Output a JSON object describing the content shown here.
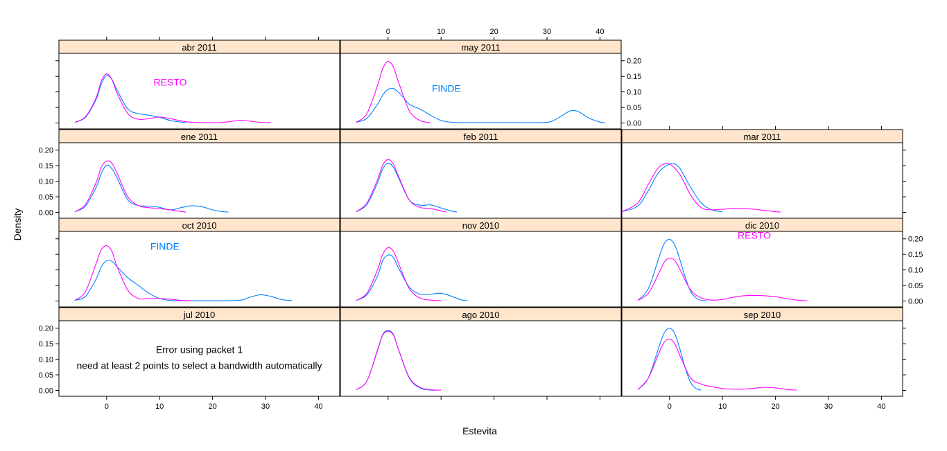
{
  "chart_data": {
    "type": "line",
    "chart_kind": "lattice density plot (densityplot), 3 columns x 4 rows",
    "xlabel": "Estevita",
    "ylabel": "Density",
    "xlim": [
      -9,
      44
    ],
    "ylim": [
      -0.01,
      0.215
    ],
    "x_ticks": [
      0,
      10,
      20,
      30,
      40
    ],
    "y_ticks": [
      0.0,
      0.05,
      0.1,
      0.15,
      0.2
    ],
    "y_tick_labels": [
      "0.00",
      "0.05",
      "0.10",
      "0.15",
      "0.20"
    ],
    "grid": false,
    "strip_color": "#ffe5cc",
    "series_colors": {
      "FINDE": "#0080ff",
      "RESTO": "#ff00ff"
    },
    "error_text": {
      "line1": "Error using packet 1",
      "line2": "need at least 2 points to select a bandwidth automatically"
    },
    "panels": [
      {
        "label": "abr 2011",
        "row": 0,
        "col": 0,
        "annotation": {
          "text": "RESTO",
          "series": "RESTO",
          "x": 12,
          "y": 0.12
        },
        "series": [
          {
            "name": "FINDE",
            "x": [
              -6,
              -4,
              -2,
              -1,
              0,
              1,
              2,
              4,
              6,
              8,
              10,
              12,
              14,
              15
            ],
            "y": [
              0.002,
              0.018,
              0.075,
              0.125,
              0.153,
              0.14,
              0.105,
              0.045,
              0.03,
              0.025,
              0.018,
              0.008,
              0.003,
              0.001
            ]
          },
          {
            "name": "RESTO",
            "x": [
              -6,
              -4,
              -2,
              -1,
              0,
              1,
              2,
              4,
              6,
              8,
              10,
              12,
              15,
              18,
              21,
              23,
              25,
              27,
              29,
              31
            ],
            "y": [
              0.002,
              0.02,
              0.08,
              0.135,
              0.158,
              0.14,
              0.095,
              0.03,
              0.012,
              0.014,
              0.019,
              0.014,
              0.004,
              0.001,
              0.001,
              0.004,
              0.008,
              0.006,
              0.002,
              0.001
            ]
          }
        ]
      },
      {
        "label": "may 2011",
        "row": 0,
        "col": 1,
        "annotation": {
          "text": "FINDE",
          "series": "FINDE",
          "x": 11,
          "y": 0.1
        },
        "series": [
          {
            "name": "FINDE",
            "x": [
              -6,
              -4,
              -2,
              -1,
              0,
              1,
              2,
              3,
              4,
              6,
              8,
              10,
              12,
              14,
              16,
              20,
              25,
              30,
              32,
              34,
              35,
              36,
              38,
              40,
              41
            ],
            "y": [
              0.002,
              0.015,
              0.06,
              0.09,
              0.108,
              0.111,
              0.098,
              0.08,
              0.06,
              0.045,
              0.025,
              0.008,
              0.002,
              0.001,
              0.001,
              0.001,
              0.001,
              0.002,
              0.015,
              0.036,
              0.04,
              0.036,
              0.015,
              0.003,
              0.001
            ]
          },
          {
            "name": "RESTO",
            "x": [
              -6,
              -4,
              -2,
              -1,
              0,
              1,
              2,
              4,
              6,
              8
            ],
            "y": [
              0.002,
              0.03,
              0.12,
              0.175,
              0.198,
              0.18,
              0.13,
              0.04,
              0.008,
              0.001
            ]
          }
        ]
      },
      {
        "label": "ene 2011",
        "row": 1,
        "col": 0,
        "series": [
          {
            "name": "FINDE",
            "x": [
              -6,
              -4,
              -2,
              -1,
              0,
              1,
              2,
              4,
              6,
              8,
              10,
              12,
              14,
              16,
              18,
              20,
              22,
              23
            ],
            "y": [
              0.002,
              0.02,
              0.08,
              0.125,
              0.152,
              0.14,
              0.11,
              0.04,
              0.022,
              0.02,
              0.016,
              0.008,
              0.015,
              0.021,
              0.018,
              0.008,
              0.002,
              0.001
            ]
          },
          {
            "name": "RESTO",
            "x": [
              -6,
              -4,
              -2,
              -1,
              0,
              1,
              2,
              4,
              6,
              8,
              10,
              12,
              14,
              15
            ],
            "y": [
              0.002,
              0.025,
              0.095,
              0.145,
              0.165,
              0.158,
              0.125,
              0.05,
              0.022,
              0.015,
              0.012,
              0.008,
              0.003,
              0.001
            ]
          }
        ]
      },
      {
        "label": "feb 2011",
        "row": 1,
        "col": 1,
        "series": [
          {
            "name": "FINDE",
            "x": [
              -6,
              -4,
              -2,
              -1,
              0,
              1,
              2,
              4,
              6,
              8,
              10,
              12,
              13
            ],
            "y": [
              0.002,
              0.025,
              0.095,
              0.14,
              0.158,
              0.145,
              0.11,
              0.04,
              0.023,
              0.024,
              0.014,
              0.004,
              0.001
            ]
          },
          {
            "name": "RESTO",
            "x": [
              -6,
              -4,
              -2,
              -1,
              0,
              1,
              2,
              4,
              6,
              8,
              10,
              11
            ],
            "y": [
              0.002,
              0.03,
              0.105,
              0.152,
              0.17,
              0.155,
              0.115,
              0.04,
              0.016,
              0.012,
              0.005,
              0.001
            ]
          }
        ]
      },
      {
        "label": "mar 2011",
        "row": 1,
        "col": 2,
        "series": [
          {
            "name": "FINDE",
            "x": [
              -9,
              -6,
              -4,
              -2,
              0,
              1,
              2,
              4,
              6,
              8,
              10
            ],
            "y": [
              0.002,
              0.02,
              0.07,
              0.13,
              0.155,
              0.155,
              0.14,
              0.08,
              0.03,
              0.008,
              0.001
            ]
          },
          {
            "name": "RESTO",
            "x": [
              -9,
              -6,
              -4,
              -2,
              0,
              2,
              4,
              6,
              8,
              10,
              12,
              14,
              16,
              18,
              20,
              21
            ],
            "y": [
              0.002,
              0.03,
              0.09,
              0.145,
              0.155,
              0.12,
              0.055,
              0.015,
              0.008,
              0.01,
              0.012,
              0.012,
              0.01,
              0.006,
              0.002,
              0.001
            ]
          }
        ]
      },
      {
        "label": "oct 2010",
        "row": 2,
        "col": 0,
        "annotation": {
          "text": "FINDE",
          "series": "FINDE",
          "x": 11,
          "y": 0.165
        },
        "series": [
          {
            "name": "FINDE",
            "x": [
              -6,
              -4,
              -2,
              -1,
              0,
              1,
              2,
              4,
              6,
              8,
              10,
              12,
              15,
              20,
              25,
              27,
              29,
              31,
              33,
              35
            ],
            "y": [
              0.002,
              0.015,
              0.07,
              0.11,
              0.13,
              0.128,
              0.11,
              0.075,
              0.05,
              0.025,
              0.008,
              0.002,
              0.001,
              0.001,
              0.002,
              0.012,
              0.02,
              0.015,
              0.005,
              0.001
            ]
          },
          {
            "name": "RESTO",
            "x": [
              -6,
              -4,
              -2,
              -1,
              0,
              1,
              2,
              4,
              6,
              8,
              10,
              12,
              14,
              16
            ],
            "y": [
              0.002,
              0.03,
              0.12,
              0.165,
              0.178,
              0.16,
              0.11,
              0.035,
              0.008,
              0.008,
              0.008,
              0.006,
              0.002,
              0.001
            ]
          }
        ]
      },
      {
        "label": "nov 2010",
        "row": 2,
        "col": 1,
        "series": [
          {
            "name": "FINDE",
            "x": [
              -6,
              -4,
              -2,
              -1,
              0,
              1,
              2,
              4,
              6,
              8,
              10,
              12,
              14,
              15
            ],
            "y": [
              0.002,
              0.02,
              0.08,
              0.13,
              0.148,
              0.14,
              0.105,
              0.045,
              0.022,
              0.022,
              0.025,
              0.015,
              0.003,
              0.001
            ]
          },
          {
            "name": "RESTO",
            "x": [
              -6,
              -4,
              -2,
              -1,
              0,
              1,
              2,
              4,
              6,
              8,
              10
            ],
            "y": [
              0.002,
              0.025,
              0.1,
              0.15,
              0.172,
              0.16,
              0.12,
              0.04,
              0.01,
              0.003,
              0.001
            ]
          }
        ]
      },
      {
        "label": "dic 2010",
        "row": 2,
        "col": 2,
        "annotation": {
          "text": "RESTO",
          "series": "RESTO",
          "x": 16,
          "y": 0.2
        },
        "series": [
          {
            "name": "FINDE",
            "x": [
              -6,
              -4,
              -2,
              -1,
              0,
              1,
              2,
              3,
              4,
              5,
              6,
              7
            ],
            "y": [
              0.002,
              0.04,
              0.14,
              0.185,
              0.198,
              0.18,
              0.13,
              0.075,
              0.03,
              0.01,
              0.002,
              0.001
            ]
          },
          {
            "name": "RESTO",
            "x": [
              -6,
              -4,
              -2,
              -1,
              0,
              1,
              2,
              4,
              6,
              8,
              10,
              12,
              14,
              16,
              18,
              20,
              22,
              24,
              26
            ],
            "y": [
              0.002,
              0.025,
              0.09,
              0.125,
              0.138,
              0.13,
              0.1,
              0.035,
              0.01,
              0.003,
              0.005,
              0.012,
              0.017,
              0.018,
              0.017,
              0.014,
              0.008,
              0.003,
              0.001
            ]
          }
        ]
      },
      {
        "label": "jul 2010",
        "row": 3,
        "col": 0,
        "error": true,
        "series": []
      },
      {
        "label": "ago 2010",
        "row": 3,
        "col": 1,
        "series": [
          {
            "name": "FINDE",
            "x": [
              -6,
              -4,
              -2,
              -1,
              0,
              1,
              2,
              4,
              6,
              8,
              9
            ],
            "y": [
              0.002,
              0.03,
              0.13,
              0.18,
              0.193,
              0.18,
              0.13,
              0.04,
              0.008,
              0.001,
              0.001
            ]
          },
          {
            "name": "RESTO",
            "x": [
              -6,
              -4,
              -2,
              -1,
              0,
              1,
              2,
              4,
              6,
              8,
              10
            ],
            "y": [
              0.002,
              0.03,
              0.128,
              0.178,
              0.19,
              0.178,
              0.13,
              0.042,
              0.01,
              0.002,
              0.001
            ]
          }
        ]
      },
      {
        "label": "sep 2010",
        "row": 3,
        "col": 2,
        "series": [
          {
            "name": "FINDE",
            "x": [
              -6,
              -4,
              -2,
              -1,
              0,
              1,
              2,
              3,
              4,
              5,
              6
            ],
            "y": [
              0.002,
              0.04,
              0.14,
              0.185,
              0.2,
              0.182,
              0.13,
              0.07,
              0.025,
              0.006,
              0.001
            ]
          },
          {
            "name": "RESTO",
            "x": [
              -6,
              -4,
              -2,
              -1,
              0,
              1,
              2,
              4,
              6,
              8,
              10,
              12,
              14,
              16,
              18,
              20,
              22,
              24
            ],
            "y": [
              0.002,
              0.04,
              0.12,
              0.155,
              0.165,
              0.15,
              0.11,
              0.04,
              0.02,
              0.012,
              0.006,
              0.004,
              0.004,
              0.007,
              0.01,
              0.008,
              0.003,
              0.001
            ]
          }
        ]
      }
    ]
  }
}
